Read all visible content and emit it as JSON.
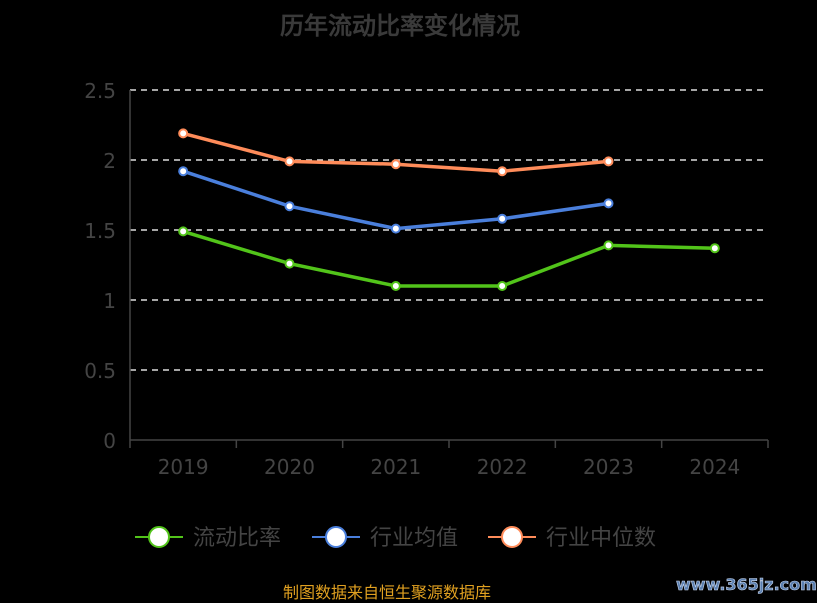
{
  "chart_data": {
    "type": "line",
    "title": "历年流动比率变化情况",
    "categories": [
      "2019",
      "2020",
      "2021",
      "2022",
      "2023",
      "2024"
    ],
    "ylim": [
      0,
      2.5
    ],
    "yticks": [
      "0",
      "0.5",
      "1",
      "1.5",
      "2",
      "2.5"
    ],
    "grid": true,
    "legend_position": "bottom",
    "series": [
      {
        "name": "流动比率",
        "color": "#52c41a",
        "values": [
          1.49,
          1.26,
          1.1,
          1.1,
          1.39,
          1.37
        ]
      },
      {
        "name": "行业均值",
        "color": "#4a7fdc",
        "values": [
          1.92,
          1.67,
          1.51,
          1.58,
          1.69,
          null
        ]
      },
      {
        "name": "行业中位数",
        "color": "#ff8c5a",
        "values": [
          2.19,
          1.99,
          1.97,
          1.92,
          1.99,
          null
        ]
      }
    ]
  },
  "footer": {
    "source": "制图数据来自恒生聚源数据库",
    "watermark": "www.365jz.com"
  }
}
